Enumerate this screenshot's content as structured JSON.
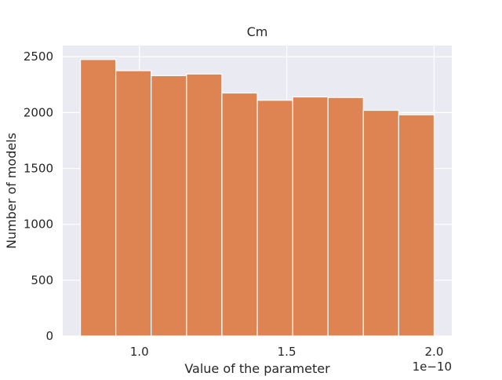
{
  "chart_data": {
    "type": "bar",
    "title": "Cm",
    "xlabel": "Value of the parameter",
    "ylabel": "Number of models",
    "x_offset_label": "1e−10",
    "bin_edges": [
      0.8,
      0.92,
      1.04,
      1.16,
      1.28,
      1.4,
      1.52,
      1.64,
      1.76,
      1.88,
      2.0
    ],
    "values": [
      2475,
      2375,
      2330,
      2345,
      2175,
      2110,
      2140,
      2135,
      2020,
      1980
    ],
    "xlim": [
      0.74,
      2.06
    ],
    "ylim": [
      0,
      2600
    ],
    "xticks": [
      1.0,
      1.5,
      2.0
    ],
    "xtick_labels": [
      "1.0",
      "1.5",
      "2.0"
    ],
    "yticks": [
      0,
      500,
      1000,
      1500,
      2000,
      2500
    ],
    "ytick_labels": [
      "0",
      "500",
      "1000",
      "1500",
      "2000",
      "2500"
    ],
    "grid": true,
    "colors": {
      "bar": "#dd8452",
      "plot_background": "#eaeaf2",
      "grid": "#ffffff",
      "bar_edge": "#ffffff"
    }
  }
}
